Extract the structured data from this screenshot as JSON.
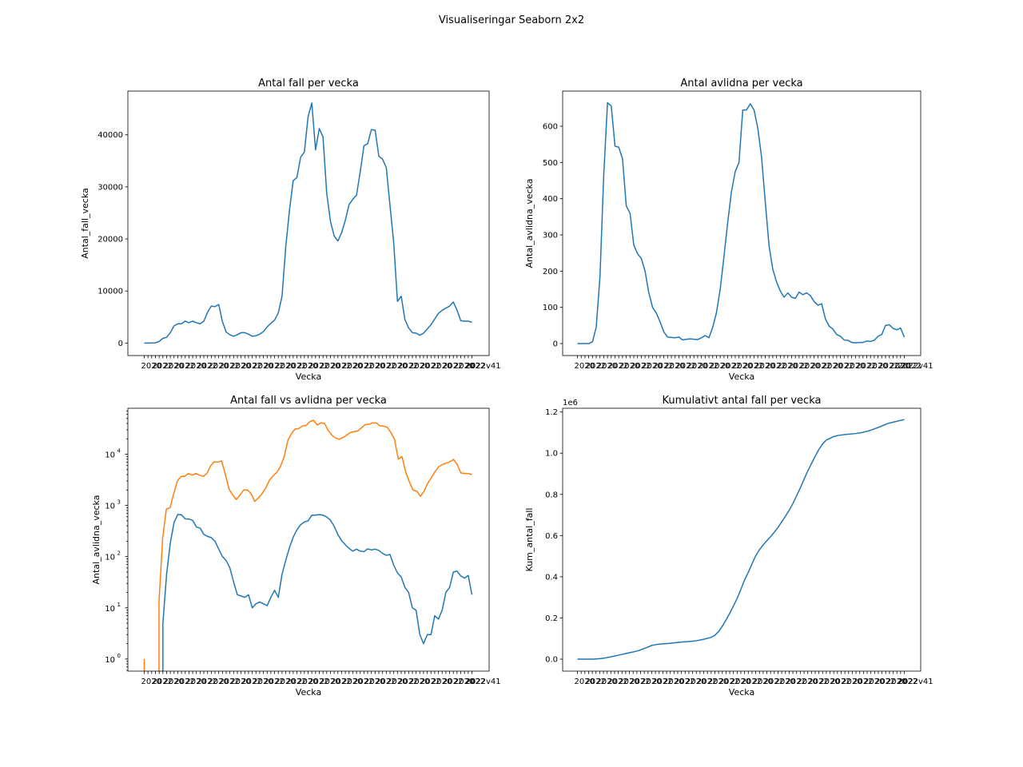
{
  "figure": {
    "suptitle": "Visualiseringar Seaborn 2x2",
    "x_tick_label_fragments": [
      "2020v1",
      "2022v41"
    ]
  },
  "chart_data": [
    {
      "type": "line",
      "title": "Antal fall per vecka",
      "xlabel": "Vecka",
      "ylabel": "Antal_fall_vecka",
      "ylim": [
        -2400,
        48400
      ],
      "yticks": [
        0,
        10000,
        20000,
        30000,
        40000
      ],
      "ytick_labels": [
        "0",
        "10000",
        "20000",
        "30000",
        "40000"
      ],
      "series": [
        {
          "color": "#1f77b4",
          "values": [
            1,
            1,
            10,
            45,
            300,
            900,
            1100,
            2000,
            3300,
            3700,
            3700,
            4200,
            3900,
            4200,
            3900,
            3700,
            4200,
            5900,
            7100,
            7000,
            7400,
            4100,
            2100,
            1600,
            1300,
            1600,
            2000,
            2000,
            1700,
            1300,
            1400,
            1700,
            2200,
            3100,
            3800,
            4400,
            5800,
            9000,
            18500,
            25500,
            31200,
            31800,
            35700,
            36700,
            43500,
            46100,
            37100,
            41200,
            39600,
            28800,
            23400,
            20600,
            19600,
            21200,
            23600,
            26600,
            27600,
            28400,
            32900,
            37900,
            38300,
            41000,
            40900,
            35900,
            35300,
            33700,
            26400,
            19200,
            8000,
            9000,
            4500,
            2900,
            2000,
            1900,
            1500,
            1900,
            2700,
            3500,
            4600,
            5700,
            6300,
            6700,
            7100,
            7900,
            6300,
            4300,
            4200,
            4200,
            4000
          ]
        }
      ]
    },
    {
      "type": "line",
      "title": "Antal avlidna per vecka",
      "xlabel": "Vecka",
      "ylabel": "Antal_avlidna_vecka",
      "ylim": [
        -33,
        697
      ],
      "yticks": [
        0,
        100,
        200,
        300,
        400,
        500,
        600
      ],
      "ytick_labels": [
        "0",
        "100",
        "200",
        "300",
        "400",
        "500",
        "600"
      ],
      "series": [
        {
          "color": "#1f77b4",
          "values": [
            0,
            0,
            0,
            0,
            5,
            45,
            185,
            465,
            665,
            656,
            545,
            542,
            510,
            380,
            360,
            272,
            248,
            235,
            200,
            140,
            100,
            84,
            60,
            32,
            18,
            17,
            16,
            18,
            10,
            12,
            13,
            12,
            11,
            16,
            22,
            16,
            45,
            85,
            150,
            240,
            335,
            420,
            475,
            500,
            645,
            645,
            662,
            645,
            595,
            515,
            390,
            270,
            205,
            170,
            145,
            128,
            140,
            128,
            125,
            142,
            135,
            140,
            132,
            116,
            106,
            110,
            68,
            48,
            40,
            25,
            20,
            10,
            9,
            3,
            2,
            3,
            3,
            7,
            6,
            9,
            20,
            25,
            50,
            52,
            42,
            38,
            43,
            18
          ]
        }
      ]
    },
    {
      "type": "line",
      "title": "Antal fall vs avlidna per vecka",
      "xlabel": "Vecka",
      "ylabel": "Antal_avlidna_vecka",
      "yscale": "log",
      "ylim": [
        0.58,
        79000
      ],
      "yticks": [
        1,
        10,
        100,
        1000,
        10000
      ],
      "ytick_labels": [
        "10",
        "10",
        "10",
        "10",
        "10"
      ],
      "ytick_exponents": [
        "0",
        "1",
        "2",
        "3",
        "4"
      ],
      "series": [
        {
          "color": "#1f77b4",
          "values": [
            0,
            0,
            0,
            0,
            0,
            5,
            45,
            185,
            465,
            665,
            656,
            545,
            542,
            510,
            380,
            360,
            272,
            248,
            235,
            200,
            140,
            100,
            84,
            60,
            32,
            18,
            17,
            16,
            18,
            10,
            12,
            13,
            12,
            11,
            16,
            22,
            16,
            45,
            85,
            150,
            240,
            335,
            420,
            475,
            500,
            645,
            645,
            662,
            645,
            595,
            515,
            390,
            270,
            205,
            170,
            145,
            128,
            140,
            128,
            125,
            142,
            135,
            140,
            132,
            116,
            106,
            110,
            68,
            48,
            40,
            25,
            20,
            10,
            9,
            3,
            2,
            3,
            3,
            7,
            6,
            9,
            20,
            25,
            50,
            52,
            42,
            38,
            43,
            18
          ]
        },
        {
          "color": "#ff7f0e",
          "values": [
            1,
            0,
            0,
            0,
            13,
            230,
            850,
            900,
            1700,
            3000,
            3700,
            3700,
            4200,
            3900,
            4200,
            3900,
            3700,
            4200,
            5900,
            7100,
            7000,
            7400,
            4100,
            2100,
            1600,
            1300,
            1600,
            2000,
            2000,
            1700,
            1200,
            1400,
            1700,
            2200,
            3100,
            3800,
            4400,
            5800,
            9000,
            18500,
            25500,
            31200,
            31800,
            35700,
            36700,
            43500,
            46100,
            37100,
            41200,
            39600,
            28800,
            23400,
            20600,
            19600,
            21200,
            23600,
            26600,
            27600,
            28400,
            32900,
            37900,
            38300,
            41000,
            40900,
            35900,
            35300,
            33700,
            26400,
            19200,
            8000,
            9000,
            4500,
            2900,
            2000,
            1900,
            1500,
            1900,
            2700,
            3500,
            4600,
            5700,
            6300,
            6700,
            7100,
            7900,
            6300,
            4300,
            4200,
            4200,
            4000
          ]
        }
      ]
    },
    {
      "type": "line",
      "title": "Kumulativt antal fall per vecka",
      "xlabel": "Vecka",
      "ylabel": "Kum_antal_fall",
      "offset_label": "1e6",
      "ylim": [
        -0.058,
        1.218
      ],
      "yticks": [
        0,
        0.2,
        0.4,
        0.6,
        0.8,
        1.0,
        1.2
      ],
      "ytick_labels": [
        "0.0",
        "0.2",
        "0.4",
        "0.6",
        "0.8",
        "1.0",
        "1.2"
      ],
      "series": [
        {
          "color": "#1f77b4",
          "values": [
            0,
            0,
            0,
            0,
            0.0004,
            0.0013,
            0.0024,
            0.0044,
            0.0077,
            0.0114,
            0.0151,
            0.0193,
            0.0232,
            0.0274,
            0.0313,
            0.035,
            0.0392,
            0.0451,
            0.0522,
            0.0592,
            0.0666,
            0.0707,
            0.0728,
            0.0744,
            0.0757,
            0.0773,
            0.0793,
            0.0813,
            0.083,
            0.0843,
            0.0857,
            0.0874,
            0.0896,
            0.0927,
            0.0965,
            0.1009,
            0.1067,
            0.1157,
            0.1342,
            0.1597,
            0.1909,
            0.2227,
            0.2584,
            0.2951,
            0.3386,
            0.3847,
            0.4218,
            0.463,
            0.5026,
            0.5314,
            0.5548,
            0.5754,
            0.595,
            0.6162,
            0.6398,
            0.6664,
            0.694,
            0.7224,
            0.7553,
            0.7932,
            0.8315,
            0.8725,
            0.9134,
            0.9493,
            0.9846,
            1.0183,
            1.0447,
            1.0639,
            1.0719,
            1.0809,
            1.0854,
            1.0883,
            1.0903,
            1.0922,
            1.0937,
            1.0956,
            1.0983,
            1.1018,
            1.1064,
            1.1121,
            1.1184,
            1.1251,
            1.1322,
            1.1401,
            1.1464,
            1.1507,
            1.1549,
            1.1591,
            1.1631
          ]
        }
      ]
    }
  ]
}
